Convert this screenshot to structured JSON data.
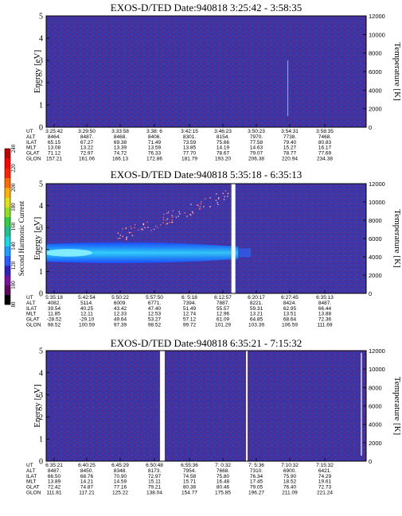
{
  "chart_data": {
    "type": "heatmap",
    "panels": [
      {
        "title": "EXOS-D/TED   Date:940818   3:25:42 - 3:58:35",
        "ylabel": "Energy [eV]",
        "yticks": [
          "0",
          "1",
          "2",
          "3",
          "4",
          "5"
        ],
        "ylim": [
          0,
          5
        ],
        "y2label": "Temperature [K]",
        "y2ticks": [
          "0",
          "2000",
          "4000",
          "6000",
          "8000",
          "10000",
          "12000"
        ],
        "y2lim": [
          0,
          12000
        ],
        "band": null,
        "rows": [
          {
            "label": "UT",
            "values": [
              "3:25:42",
              "3:29:50",
              "3:33:58",
              "3:38: 6",
              "3:42:15",
              "3:46:23",
              "3:50:23",
              "3:54:31",
              "3:58:35"
            ]
          },
          {
            "label": "ALT",
            "values": [
              "8464.",
              "8487.",
              "8468.",
              "8406.",
              "8301.",
              "8154.",
              "7970.",
              "7738.",
              "7468."
            ]
          },
          {
            "label": "ILAT",
            "values": [
              "65.15",
              "67.27",
              "69.38",
              "71.49",
              "73.59",
              "75.66",
              "77.58",
              "79.40",
              "80.83"
            ]
          },
          {
            "label": "MLT",
            "values": [
              "13.08",
              "13.22",
              "13.39",
              "13.59",
              "13.85",
              "14.19",
              "14.63",
              "15.27",
              "16.17"
            ]
          },
          {
            "label": "GLAT",
            "values": [
              "71.12",
              "72.97",
              "74.72",
              "76.33",
              "77.70",
              "78.67",
              "79.07",
              "78.77",
              "77.69"
            ]
          },
          {
            "label": "GLON",
            "values": [
              "157.21",
              "161.06",
              "166.13",
              "172.86",
              "181.79",
              "193.20",
              "206.38",
              "220.94",
              "234.38"
            ]
          }
        ]
      },
      {
        "title": "EXOS-D/TED   Date:940818   5:35:18 - 6:35:13",
        "ylabel": "Energy [eV]",
        "yticks": [
          "0",
          "1",
          "2",
          "3",
          "4",
          "5"
        ],
        "ylim": [
          0,
          5
        ],
        "y2label": "Temperature [K]",
        "y2ticks": [
          "0",
          "2000",
          "4000",
          "6000",
          "8000",
          "10000",
          "12000"
        ],
        "y2lim": [
          0,
          12000
        ],
        "band": {
          "center_ev": 1.85,
          "width_ev": 0.8,
          "end_fraction": 0.6
        },
        "rows": [
          {
            "label": "UT",
            "values": [
              "5:35:18",
              "5:42:54",
              "5:50:22",
              "5:57:50",
              "6: 5:18",
              "6:12:57",
              "6:20:17",
              "6:27:45",
              "6:35:13"
            ]
          },
          {
            "label": "ALT",
            "values": [
              "4082.",
              "5114.",
              "6009.",
              "6771.",
              "7394.",
              "7887.",
              "8221.",
              "8424.",
              "8487."
            ]
          },
          {
            "label": "ILAT",
            "values": [
              "39.54",
              "40.25",
              "43.42",
              "47.40",
              "51.49",
              "55.57",
              "59.31",
              "62.95",
              "66.44"
            ]
          },
          {
            "label": "MLT",
            "values": [
              "11.85",
              "12.11",
              "12.33",
              "12.53",
              "12.74",
              "12.96",
              "13.21",
              "13.51",
              "13.88"
            ]
          },
          {
            "label": "GLAT",
            "values": [
              "-28.52",
              "-29.10",
              "49.64",
              "53.27",
              "57.12",
              "61.09",
              "64.85",
              "68.64",
              "72.36"
            ]
          },
          {
            "label": "GLON",
            "values": [
              "98.52",
              "100.59",
              "97.39",
              "98.52",
              "99.72",
              "101.29",
              "103.39",
              "106.59",
              "111.69"
            ]
          }
        ]
      },
      {
        "title": "EXOS-D/TED   Date:940818   6:35:21 - 7:15:32",
        "ylabel": "Energy [eV]",
        "yticks": [
          "0",
          "1",
          "2",
          "3",
          "4",
          "5"
        ],
        "ylim": [
          0,
          5
        ],
        "y2label": "Temperature [K]",
        "y2ticks": [
          "0",
          "2000",
          "4000",
          "6000",
          "8000",
          "10000",
          "12000"
        ],
        "y2lim": [
          0,
          12000
        ],
        "band": null,
        "rows": [
          {
            "label": "UT",
            "values": [
              "6:35:21",
              "6:40:25",
              "6:45:29",
              "6:50:48",
              "6:55:36",
              "7: 0:32",
              "7: 5:36",
              "7:10:32",
              "7:15:32"
            ]
          },
          {
            "label": "ALT",
            "values": [
              "8487.",
              "8450.",
              "8348.",
              "8173.",
              "7954.",
              "7668.",
              "7310.",
              "6900.",
              "6421."
            ]
          },
          {
            "label": "ILAT",
            "values": [
              "66.50",
              "68.76",
              "70.90",
              "72.97",
              "74.58",
              "75.80",
              "76.34",
              "75.90",
              "74.29"
            ]
          },
          {
            "label": "MLT",
            "values": [
              "13.89",
              "14.21",
              "14.59",
              "15.11",
              "15.71",
              "16.48",
              "17.45",
              "18.52",
              "19.61"
            ]
          },
          {
            "label": "GLAT",
            "values": [
              "72.42",
              "74.87",
              "77.16",
              "79.21",
              "80.38",
              "80.46",
              "79.05",
              "76.40",
              "72.73"
            ]
          },
          {
            "label": "GLON",
            "values": [
              "111.81",
              "117.21",
              "125.22",
              "138.04",
              "154.77",
              "175.85",
              "196.27",
              "211.09",
              "221.24"
            ]
          }
        ]
      }
    ],
    "colorbar": {
      "label": "Second Harmonic Current",
      "ticks": [
        "80",
        "100",
        "120",
        "140",
        "160",
        "180",
        "200",
        "220",
        "240"
      ],
      "range": [
        80,
        240
      ]
    }
  }
}
